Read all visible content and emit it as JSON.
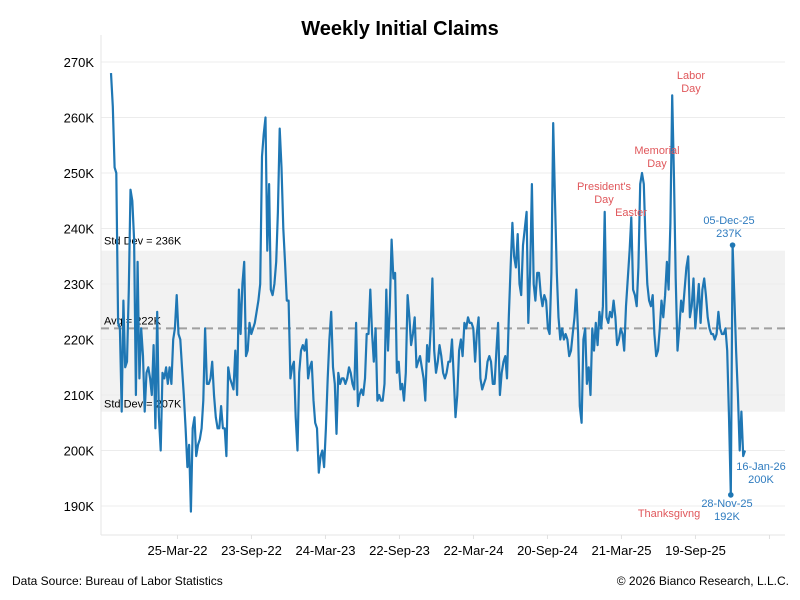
{
  "chart_data": {
    "type": "line",
    "title": "Weekly Initial Claims",
    "xlabel": "",
    "ylabel": "",
    "ylim": [
      184,
      272
    ],
    "yticks": [
      190,
      200,
      210,
      220,
      230,
      240,
      250,
      260,
      270
    ],
    "ytick_labels": [
      "190K",
      "200K",
      "210K",
      "220K",
      "230K",
      "240K",
      "250K",
      "260K",
      "270K"
    ],
    "xticks": [
      {
        "label": "25-Mar-22",
        "week": 23
      },
      {
        "label": "23-Sep-22",
        "week": 49
      },
      {
        "label": "24-Mar-23",
        "week": 75
      },
      {
        "label": "22-Sep-23",
        "week": 101
      },
      {
        "label": "22-Mar-24",
        "week": 127
      },
      {
        "label": "20-Sep-24",
        "week": 153
      },
      {
        "label": "21-Mar-25",
        "week": 179
      },
      {
        "label": "19-Sep-25",
        "week": 205
      }
    ],
    "grid": true,
    "line_color": "#1f77b4",
    "band": {
      "low": 207,
      "high": 236,
      "color": "#f2f2f2"
    },
    "avg": 222,
    "reference_labels": {
      "std_high": "Std Dev = 236K",
      "avg": "Avg = 222K",
      "std_low": "Std Dev = 207K"
    },
    "series": [
      {
        "name": "Weekly Initial Claims (K)",
        "values": [
          268,
          262,
          251,
          250,
          223,
          222,
          207,
          227,
          215,
          216,
          229,
          247,
          245,
          238,
          210,
          234,
          213,
          222,
          217,
          207,
          214,
          215,
          213,
          210,
          219,
          204,
          225,
          206,
          200,
          214,
          213,
          215,
          212,
          215,
          212,
          220,
          222,
          228,
          221,
          220,
          215,
          210,
          204,
          197,
          201,
          189,
          204,
          206,
          199,
          201,
          202,
          204,
          209,
          222,
          212,
          212,
          213,
          216,
          210,
          206,
          204,
          204,
          208,
          204,
          204,
          199,
          215,
          213,
          212,
          211,
          218,
          210,
          229,
          221,
          230,
          234,
          217,
          218,
          223,
          221,
          222,
          223,
          225,
          227,
          230,
          253,
          257,
          260,
          236,
          248,
          229,
          228,
          230,
          234,
          243,
          258,
          251,
          240,
          234,
          227,
          227,
          213,
          215,
          216,
          206,
          200,
          214,
          218,
          219,
          218,
          220,
          213,
          215,
          216,
          209,
          205,
          204,
          196,
          199,
          200,
          197,
          204,
          213,
          220,
          225,
          215,
          212,
          203,
          214,
          212,
          213,
          213,
          212,
          213,
          215,
          214,
          212,
          211,
          223,
          208,
          210,
          211,
          210,
          213,
          221,
          221,
          229,
          221,
          216,
          222,
          209,
          210,
          209,
          209,
          212,
          229,
          218,
          226,
          238,
          231,
          232,
          214,
          216,
          211,
          212,
          209,
          214,
          228,
          224,
          219,
          221,
          224,
          215,
          216,
          217,
          215,
          213,
          209,
          219,
          216,
          222,
          231,
          218,
          214,
          216,
          219,
          217,
          214,
          213,
          214,
          216,
          216,
          220,
          213,
          206,
          210,
          218,
          220,
          217,
          223,
          222,
          224,
          223,
          223,
          222,
          216,
          221,
          224,
          213,
          211,
          212,
          213,
          216,
          217,
          216,
          212,
          212,
          218,
          223,
          210,
          214,
          216,
          217,
          213,
          224,
          233,
          241,
          235,
          233,
          239,
          230,
          228,
          237,
          240,
          243,
          223,
          232,
          248,
          230,
          227,
          232,
          232,
          228,
          226,
          228,
          227,
          222,
          221,
          232,
          259,
          245,
          232,
          224,
          220,
          222,
          220,
          221,
          220,
          217,
          218,
          221,
          224,
          229,
          221,
          208,
          205,
          220,
          222,
          212,
          215,
          210,
          222,
          218,
          223,
          219,
          225,
          222,
          226,
          243,
          224,
          223,
          225,
          224,
          227,
          224,
          219,
          220,
          222,
          221,
          218,
          226,
          231,
          236,
          242,
          229,
          228,
          226,
          233,
          248,
          250,
          248,
          238,
          230,
          227,
          226,
          228,
          221,
          217,
          218,
          222,
          227,
          224,
          228,
          234,
          229,
          241,
          264,
          249,
          231,
          218,
          222,
          227,
          225,
          229,
          233,
          235,
          224,
          226,
          231,
          222,
          226,
          230,
          223,
          229,
          231,
          228,
          224,
          222,
          221,
          221,
          220,
          221,
          225,
          222,
          221,
          221,
          222,
          218,
          206,
          192,
          237,
          228,
          218,
          210,
          200,
          207,
          199,
          200
        ]
      }
    ],
    "start_week_label_hint": "weekly",
    "annotations": [
      {
        "text": "Labor Day",
        "lines": [
          "Labor",
          "Day"
        ],
        "color": "#e0575b"
      },
      {
        "text": "Memorial Day",
        "lines": [
          "Memorial",
          "Day"
        ],
        "color": "#e0575b"
      },
      {
        "text": "President's Day",
        "lines": [
          "President's",
          "Day"
        ],
        "color": "#e0575b"
      },
      {
        "text": "Easter",
        "lines": [
          "Easter"
        ],
        "color": "#e0575b"
      },
      {
        "text": "Thanksgivng",
        "lines": [
          "Thanksgivng"
        ],
        "color": "#e0575b"
      },
      {
        "text": "05-Dec-25 237K",
        "lines": [
          "05-Dec-25",
          "237K"
        ],
        "color": "#2e7bbf",
        "value": 237
      },
      {
        "text": "28-Nov-25 192K",
        "lines": [
          "28-Nov-25",
          "192K"
        ],
        "color": "#2e7bbf",
        "value": 192
      },
      {
        "text": "16-Jan-26 200K",
        "lines": [
          "16-Jan-26",
          "200K"
        ],
        "color": "#2e7bbf",
        "value": 200
      }
    ]
  },
  "footer": {
    "source": "Data Source: Bureau of Labor Statistics",
    "copyright": "©  2026 Bianco Research, L.L.C."
  }
}
